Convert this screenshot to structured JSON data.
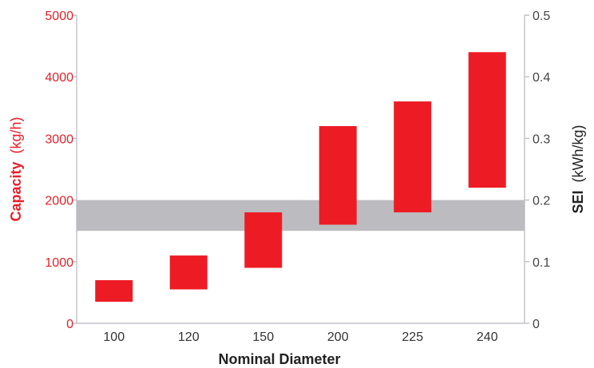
{
  "chart_data": {
    "type": "bar",
    "subtype": "floating-range",
    "categories": [
      "100",
      "120",
      "150",
      "200",
      "225",
      "240"
    ],
    "series": [
      {
        "name": "Capacity",
        "axis": "left",
        "ranges": [
          [
            350,
            700
          ],
          [
            550,
            1100
          ],
          [
            900,
            1800
          ],
          [
            1600,
            3200
          ],
          [
            1800,
            3600
          ],
          [
            2200,
            4400
          ]
        ]
      }
    ],
    "band": {
      "axis": "right",
      "range": [
        0.15,
        0.2
      ]
    },
    "xlabel": "Nominal Diameter",
    "ylabel_left": {
      "bold": "Capacity",
      "unit": "(kg/h)"
    },
    "ylabel_right": {
      "bold": "SEI",
      "unit": "(kWh/kg)"
    },
    "ylim_left": [
      0,
      5000
    ],
    "ylim_right": [
      0,
      0.5
    ],
    "yticks_left": [
      "0",
      "1000",
      "2000",
      "3000",
      "4000",
      "5000"
    ],
    "yticks_right": [
      "0",
      "0.1",
      "0.2",
      "0.3",
      "0.4",
      "0.5"
    ],
    "grid": false,
    "colors": {
      "bars": "#ed1c24",
      "band": "#bcbcc0",
      "left_axis_text": "#e8202a",
      "right_axis_text": "#444444"
    }
  }
}
